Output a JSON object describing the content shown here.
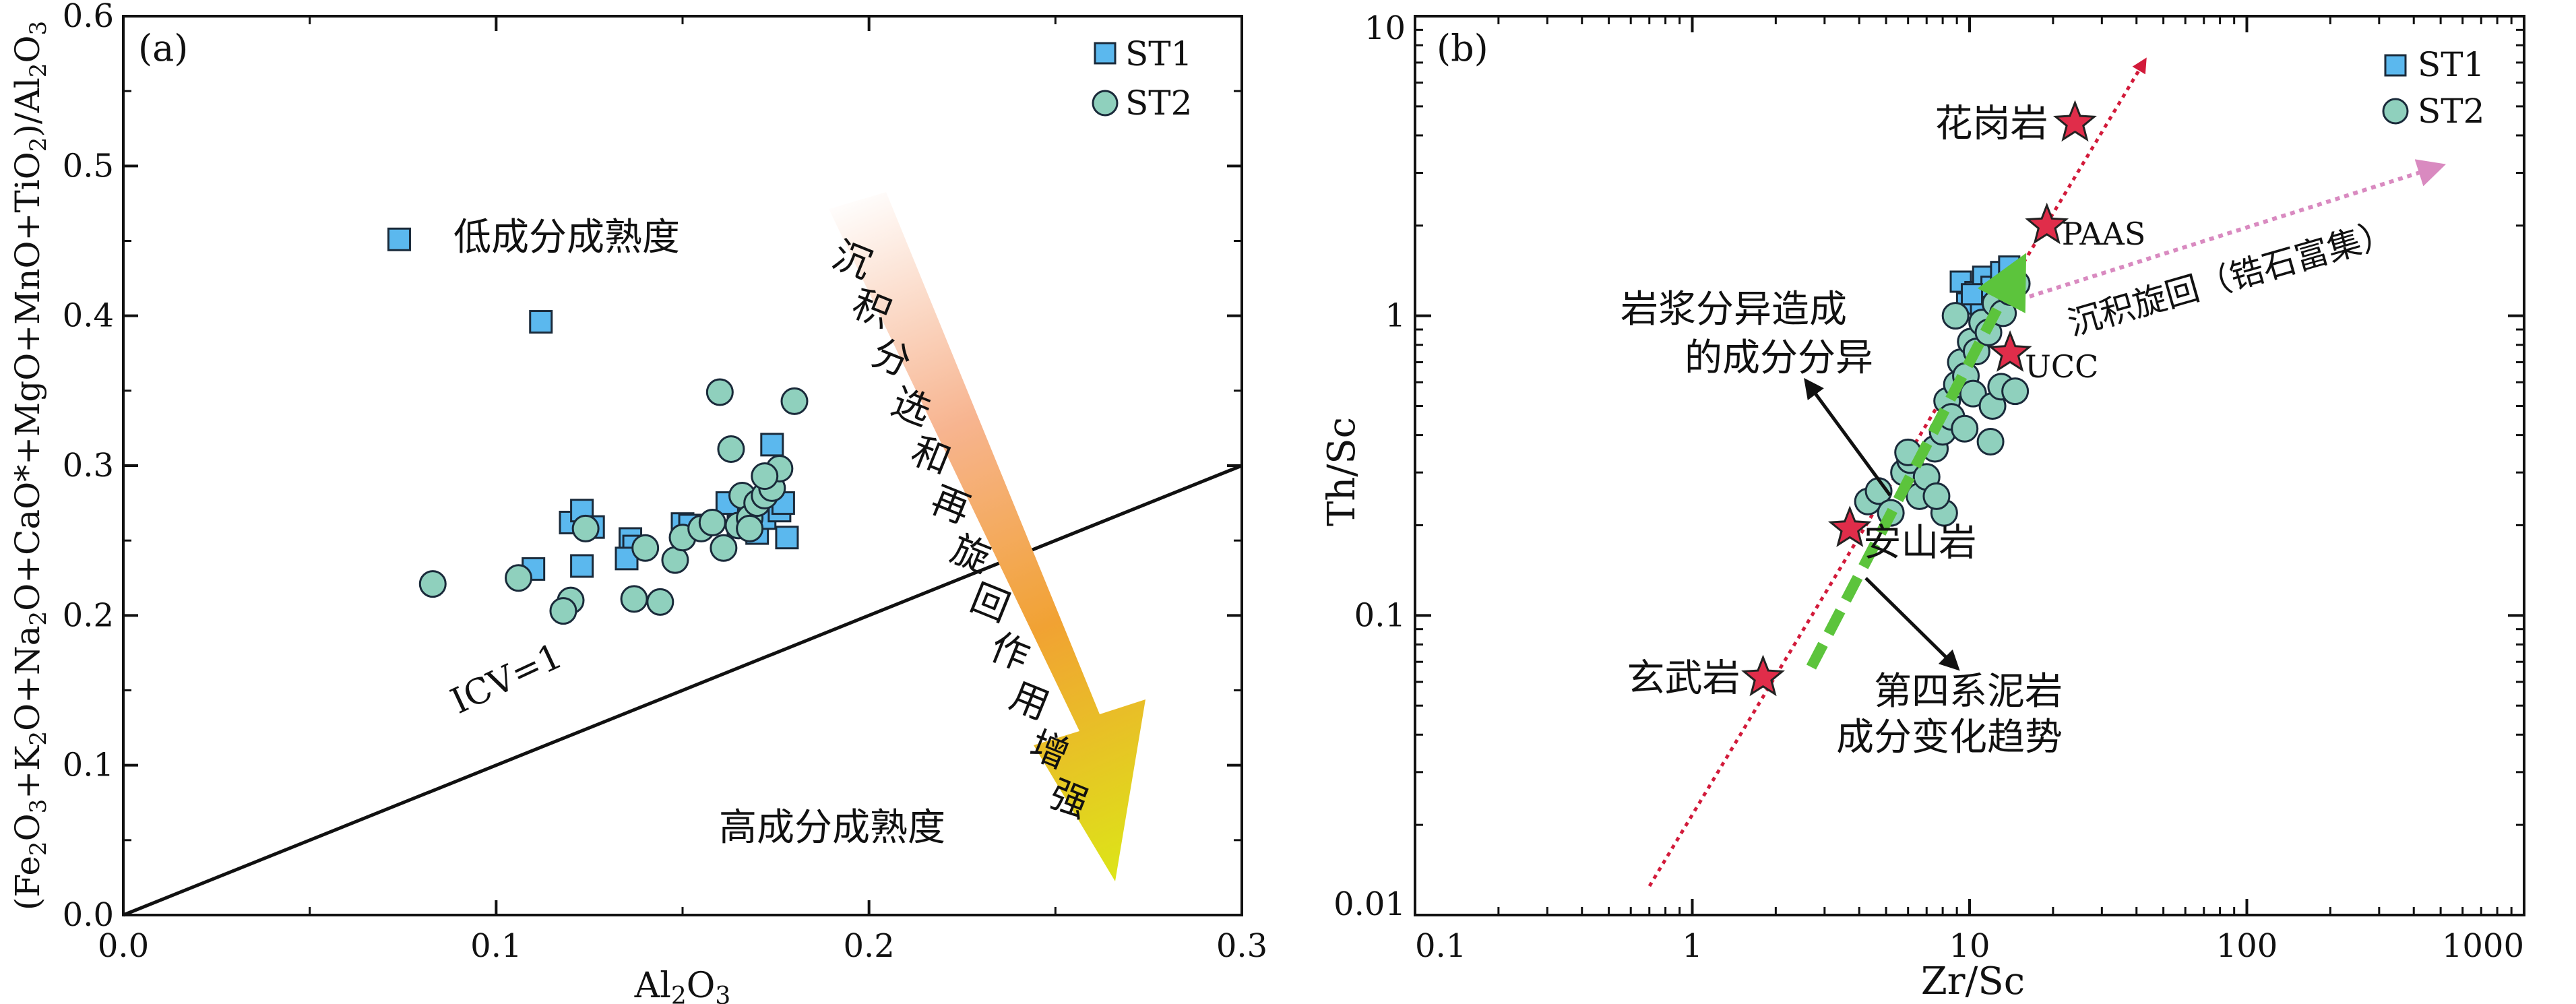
{
  "colors": {
    "st1_fill": "#5bb8ee",
    "st2_fill": "#8fd0bd",
    "marker_stroke": "#1a2a3a",
    "star_fill": "#e02d4a",
    "red_line": "#d21a3a",
    "pink_arrow": "#d98ac0",
    "green_trend": "#5cc43c"
  },
  "chart_data": [
    {
      "type": "scatter",
      "panel_label": "(a)",
      "xlabel": "Al2O3",
      "ylabel": "(Fe2O3+K2O+Na2O+CaO*+MgO+MnO+TiO2)/Al2O3",
      "xlim": [
        0,
        0.3
      ],
      "ylim": [
        0,
        0.6
      ],
      "x_ticks": [
        "0.0",
        "0.1",
        "0.2",
        "0.3"
      ],
      "y_ticks": [
        "0.0",
        "0.1",
        "0.2",
        "0.3",
        "0.4",
        "0.5",
        "0.6"
      ],
      "legend": {
        "placement": "top-right",
        "entries": [
          "ST1",
          "ST2"
        ]
      },
      "series": [
        {
          "name": "ST1",
          "marker": "square",
          "x": [
            0.074,
            0.112,
            0.12,
            0.123,
            0.126,
            0.123,
            0.11,
            0.136,
            0.137,
            0.135,
            0.15,
            0.152,
            0.162,
            0.165,
            0.17,
            0.172,
            0.174,
            0.176,
            0.177,
            0.178
          ],
          "y": [
            0.451,
            0.396,
            0.262,
            0.27,
            0.259,
            0.233,
            0.231,
            0.251,
            0.246,
            0.238,
            0.261,
            0.26,
            0.275,
            0.26,
            0.255,
            0.265,
            0.314,
            0.27,
            0.275,
            0.252
          ]
        },
        {
          "name": "ST2",
          "marker": "circle",
          "x": [
            0.083,
            0.106,
            0.12,
            0.124,
            0.118,
            0.14,
            0.137,
            0.144,
            0.148,
            0.15,
            0.155,
            0.158,
            0.16,
            0.163,
            0.161,
            0.165,
            0.166,
            0.168,
            0.17,
            0.172,
            0.174,
            0.176,
            0.18,
            0.168,
            0.172
          ],
          "y": [
            0.221,
            0.225,
            0.21,
            0.258,
            0.203,
            0.245,
            0.211,
            0.209,
            0.237,
            0.252,
            0.258,
            0.262,
            0.349,
            0.311,
            0.245,
            0.26,
            0.28,
            0.265,
            0.275,
            0.28,
            0.285,
            0.298,
            0.343,
            0.258,
            0.293
          ]
        }
      ],
      "reference_line": {
        "label": "ICV=1",
        "x": [
          0,
          0.3
        ],
        "y": [
          0,
          0.3
        ]
      },
      "annotations": {
        "low_maturity": "低成分成熟度",
        "high_maturity": "高成分成熟度",
        "arrow_text": "沉积分选和再旋回作用增强"
      }
    },
    {
      "type": "scatter",
      "panel_label": "(b)",
      "xlabel": "Zr/Sc",
      "ylabel": "Th/Sc",
      "xscale": "log",
      "yscale": "log",
      "xlim": [
        0.1,
        1000
      ],
      "ylim": [
        0.01,
        10
      ],
      "x_ticks": [
        "0.1",
        "1",
        "10",
        "100",
        "1000"
      ],
      "y_ticks": [
        "0.01",
        "0.1",
        "1",
        "10"
      ],
      "legend": {
        "placement": "top-right",
        "entries": [
          "ST1",
          "ST2"
        ]
      },
      "series": [
        {
          "name": "ST1",
          "marker": "square",
          "x": [
            9.3,
            9.8,
            10.5,
            11.2,
            12.0,
            13.0,
            13.9,
            11.0,
            10.2
          ],
          "y": [
            1.3,
            1.1,
            1.2,
            1.35,
            1.25,
            1.4,
            1.46,
            1.05,
            1.18
          ]
        },
        {
          "name": "ST2",
          "marker": "circle",
          "x": [
            4.3,
            4.7,
            5.2,
            5.8,
            6.1,
            6.6,
            7.0,
            7.5,
            8.0,
            8.3,
            8.6,
            9.0,
            9.3,
            9.7,
            10.1,
            10.6,
            11.1,
            11.7,
            12.4,
            13.2,
            14.0,
            14.8,
            8.1,
            10.3,
            12.1,
            9.6,
            6.0,
            7.6,
            11.9,
            13.0,
            14.6,
            8.9
          ],
          "y": [
            0.24,
            0.26,
            0.22,
            0.3,
            0.33,
            0.25,
            0.29,
            0.36,
            0.41,
            0.52,
            0.46,
            0.59,
            0.7,
            0.63,
            0.82,
            0.76,
            0.95,
            0.88,
            1.1,
            1.02,
            1.2,
            1.28,
            0.22,
            0.55,
            0.5,
            0.42,
            0.35,
            0.25,
            0.38,
            0.58,
            0.56,
            1.0
          ]
        }
      ],
      "reference_points": [
        {
          "label": "花岗岩",
          "x": 24,
          "y": 4.4
        },
        {
          "label": "PAAS",
          "x": 19,
          "y": 2.0
        },
        {
          "label": "UCC",
          "x": 14,
          "y": 0.75
        },
        {
          "label": "安山岩",
          "x": 3.7,
          "y": 0.195
        },
        {
          "label": "玄武岩",
          "x": 1.8,
          "y": 0.062
        }
      ],
      "annotations": {
        "magma_differentiation": [
          "岩浆分异造成",
          "的成分分异"
        ],
        "sediment_recycling": "沉积旋回（锆石富集）",
        "quaternary_trend": [
          "第四系泥岩",
          "成分变化趋势"
        ]
      }
    }
  ]
}
